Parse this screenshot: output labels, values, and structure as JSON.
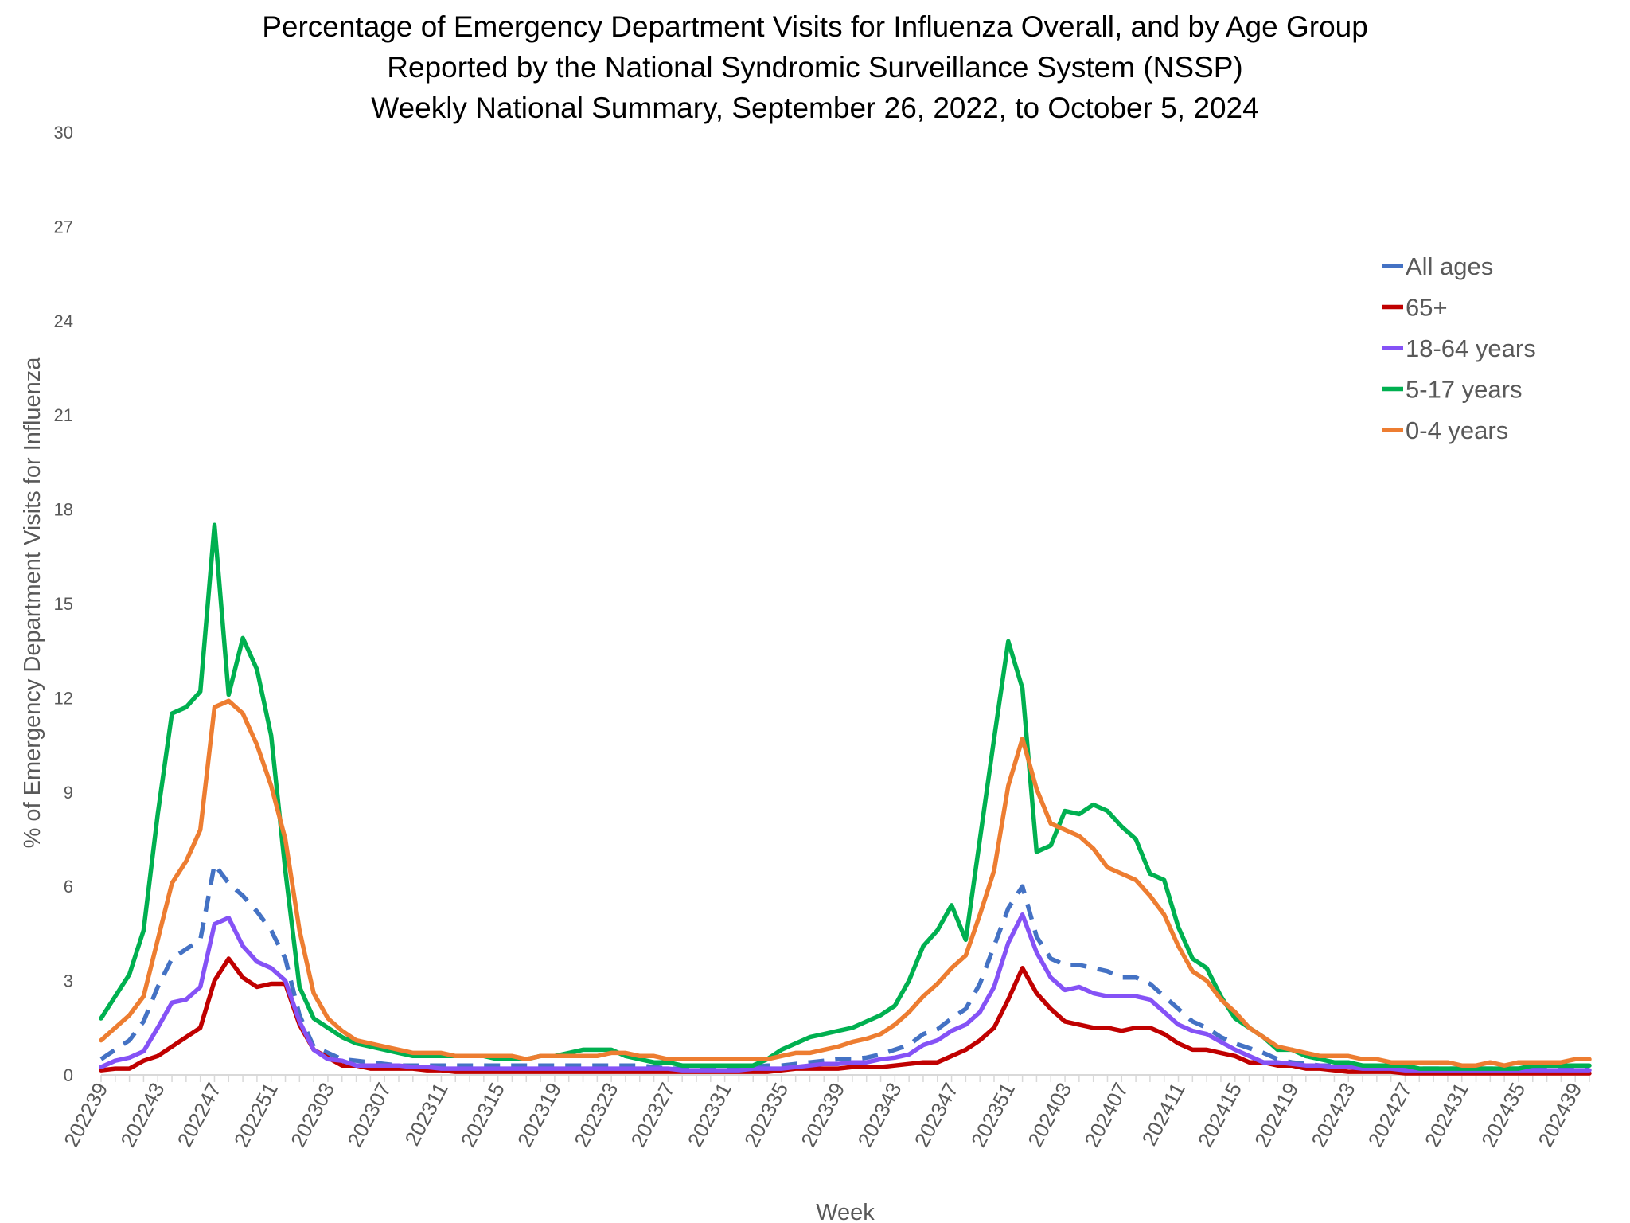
{
  "chart_data": {
    "type": "line",
    "title": [
      "Percentage of Emergency Department Visits for Influenza Overall, and by Age Group",
      "Reported by the National Syndromic Surveillance System (NSSP)",
      "Weekly National Summary, September 26, 2022, to October 5, 2024"
    ],
    "xlabel": "Week",
    "ylabel": "% of Emergency Department Visits for Influenza",
    "ylim": [
      0,
      30
    ],
    "yticks": [
      0,
      3,
      6,
      9,
      12,
      15,
      18,
      21,
      24,
      27,
      30
    ],
    "grid": false,
    "legend_position": "right",
    "xtick_labels": [
      "202239",
      "202243",
      "202247",
      "202251",
      "202303",
      "202307",
      "202311",
      "202315",
      "202319",
      "202323",
      "202327",
      "202331",
      "202335",
      "202339",
      "202343",
      "202347",
      "202351",
      "202403",
      "202407",
      "202411",
      "202415",
      "202419",
      "202423",
      "202427",
      "202431",
      "202435",
      "202439"
    ],
    "x": [
      "202239",
      "202240",
      "202241",
      "202242",
      "202243",
      "202244",
      "202245",
      "202246",
      "202247",
      "202248",
      "202249",
      "202250",
      "202251",
      "202252",
      "202301",
      "202302",
      "202303",
      "202304",
      "202305",
      "202306",
      "202307",
      "202308",
      "202309",
      "202310",
      "202311",
      "202312",
      "202313",
      "202314",
      "202315",
      "202316",
      "202317",
      "202318",
      "202319",
      "202320",
      "202321",
      "202322",
      "202323",
      "202324",
      "202325",
      "202326",
      "202327",
      "202328",
      "202329",
      "202330",
      "202331",
      "202332",
      "202333",
      "202334",
      "202335",
      "202336",
      "202337",
      "202338",
      "202339",
      "202340",
      "202341",
      "202342",
      "202343",
      "202344",
      "202345",
      "202346",
      "202347",
      "202348",
      "202349",
      "202350",
      "202351",
      "202352",
      "202401",
      "202402",
      "202403",
      "202404",
      "202405",
      "202406",
      "202407",
      "202408",
      "202409",
      "202410",
      "202411",
      "202412",
      "202413",
      "202414",
      "202415",
      "202416",
      "202417",
      "202418",
      "202419",
      "202420",
      "202421",
      "202422",
      "202423",
      "202424",
      "202425",
      "202426",
      "202427",
      "202428",
      "202429",
      "202430",
      "202431",
      "202432",
      "202433",
      "202434",
      "202435",
      "202436",
      "202437",
      "202438",
      "202439",
      "202440"
    ],
    "series": [
      {
        "name": "All ages",
        "color": "#4472C4",
        "dashed": true,
        "values": [
          0.5,
          0.8,
          1.1,
          1.7,
          2.8,
          3.7,
          4.0,
          4.3,
          6.7,
          6.1,
          5.7,
          5.2,
          4.6,
          3.7,
          1.9,
          0.9,
          0.7,
          0.5,
          0.45,
          0.4,
          0.35,
          0.3,
          0.3,
          0.3,
          0.3,
          0.3,
          0.3,
          0.3,
          0.3,
          0.3,
          0.3,
          0.3,
          0.3,
          0.3,
          0.3,
          0.3,
          0.3,
          0.3,
          0.3,
          0.25,
          0.2,
          0.2,
          0.2,
          0.2,
          0.2,
          0.2,
          0.25,
          0.3,
          0.3,
          0.35,
          0.4,
          0.45,
          0.5,
          0.5,
          0.55,
          0.65,
          0.8,
          0.95,
          1.3,
          1.45,
          1.8,
          2.1,
          2.9,
          4.1,
          5.3,
          6.0,
          4.4,
          3.7,
          3.5,
          3.5,
          3.4,
          3.3,
          3.1,
          3.1,
          2.9,
          2.5,
          2.1,
          1.7,
          1.5,
          1.2,
          1.0,
          0.85,
          0.7,
          0.5,
          0.4,
          0.35,
          0.3,
          0.3,
          0.3,
          0.25,
          0.2,
          0.2,
          0.2,
          0.2,
          0.2,
          0.2,
          0.2,
          0.2,
          0.2,
          0.2,
          0.2,
          0.2,
          0.2,
          0.2,
          0.2,
          0.2
        ]
      },
      {
        "name": "65+",
        "color": "#C00000",
        "dashed": false,
        "values": [
          0.15,
          0.2,
          0.2,
          0.45,
          0.6,
          0.9,
          1.2,
          1.5,
          3.0,
          3.7,
          3.1,
          2.8,
          2.9,
          2.9,
          1.6,
          0.8,
          0.55,
          0.3,
          0.3,
          0.2,
          0.2,
          0.2,
          0.2,
          0.15,
          0.15,
          0.1,
          0.1,
          0.1,
          0.1,
          0.1,
          0.1,
          0.1,
          0.1,
          0.1,
          0.1,
          0.1,
          0.1,
          0.1,
          0.1,
          0.1,
          0.1,
          0.1,
          0.1,
          0.1,
          0.1,
          0.1,
          0.1,
          0.1,
          0.15,
          0.2,
          0.2,
          0.2,
          0.2,
          0.25,
          0.25,
          0.25,
          0.3,
          0.35,
          0.4,
          0.4,
          0.6,
          0.8,
          1.1,
          1.5,
          2.4,
          3.4,
          2.6,
          2.1,
          1.7,
          1.6,
          1.5,
          1.5,
          1.4,
          1.5,
          1.5,
          1.3,
          1.0,
          0.8,
          0.8,
          0.7,
          0.6,
          0.4,
          0.4,
          0.3,
          0.3,
          0.2,
          0.2,
          0.15,
          0.1,
          0.1,
          0.1,
          0.1,
          0.05,
          0.05,
          0.05,
          0.05,
          0.05,
          0.05,
          0.05,
          0.05,
          0.05,
          0.05,
          0.05,
          0.05,
          0.05,
          0.05
        ]
      },
      {
        "name": "18-64 years",
        "color": "#8552F6",
        "dashed": false,
        "values": [
          0.25,
          0.45,
          0.55,
          0.75,
          1.5,
          2.3,
          2.4,
          2.8,
          4.8,
          5.0,
          4.1,
          3.6,
          3.4,
          3.0,
          1.7,
          0.8,
          0.5,
          0.45,
          0.3,
          0.3,
          0.3,
          0.3,
          0.25,
          0.25,
          0.2,
          0.2,
          0.2,
          0.2,
          0.2,
          0.2,
          0.2,
          0.2,
          0.2,
          0.2,
          0.2,
          0.2,
          0.2,
          0.2,
          0.2,
          0.2,
          0.2,
          0.15,
          0.15,
          0.15,
          0.15,
          0.15,
          0.2,
          0.2,
          0.2,
          0.25,
          0.3,
          0.35,
          0.35,
          0.4,
          0.4,
          0.5,
          0.55,
          0.65,
          0.95,
          1.1,
          1.4,
          1.6,
          2.0,
          2.8,
          4.2,
          5.1,
          3.9,
          3.1,
          2.7,
          2.8,
          2.6,
          2.5,
          2.5,
          2.5,
          2.4,
          2.0,
          1.6,
          1.4,
          1.3,
          1.05,
          0.8,
          0.6,
          0.4,
          0.4,
          0.35,
          0.3,
          0.3,
          0.25,
          0.25,
          0.2,
          0.2,
          0.2,
          0.15,
          0.15,
          0.15,
          0.15,
          0.15,
          0.15,
          0.15,
          0.15,
          0.15,
          0.15,
          0.15,
          0.15,
          0.15,
          0.15
        ]
      },
      {
        "name": "5-17 years",
        "color": "#00B050",
        "dashed": false,
        "values": [
          1.8,
          2.5,
          3.2,
          4.6,
          8.3,
          11.5,
          11.7,
          12.2,
          17.5,
          12.1,
          13.9,
          12.9,
          10.8,
          6.5,
          2.8,
          1.8,
          1.5,
          1.2,
          1.0,
          0.9,
          0.8,
          0.7,
          0.6,
          0.6,
          0.6,
          0.6,
          0.6,
          0.6,
          0.5,
          0.5,
          0.5,
          0.6,
          0.6,
          0.7,
          0.8,
          0.8,
          0.8,
          0.6,
          0.5,
          0.4,
          0.4,
          0.3,
          0.3,
          0.3,
          0.3,
          0.3,
          0.3,
          0.5,
          0.8,
          1.0,
          1.2,
          1.3,
          1.4,
          1.5,
          1.7,
          1.9,
          2.2,
          3.0,
          4.1,
          4.6,
          5.4,
          4.3,
          7.5,
          10.7,
          13.8,
          12.3,
          7.1,
          7.3,
          8.4,
          8.3,
          8.6,
          8.4,
          7.9,
          7.5,
          6.4,
          6.2,
          4.7,
          3.7,
          3.4,
          2.5,
          1.8,
          1.5,
          1.2,
          0.8,
          0.8,
          0.6,
          0.5,
          0.4,
          0.4,
          0.3,
          0.3,
          0.3,
          0.3,
          0.2,
          0.2,
          0.2,
          0.2,
          0.2,
          0.2,
          0.2,
          0.2,
          0.3,
          0.3,
          0.3,
          0.3,
          0.3
        ]
      },
      {
        "name": "0-4 years",
        "color": "#ED7D31",
        "dashed": false,
        "values": [
          1.1,
          1.5,
          1.9,
          2.5,
          4.3,
          6.1,
          6.8,
          7.8,
          11.7,
          11.9,
          11.5,
          10.5,
          9.2,
          7.5,
          4.6,
          2.6,
          1.8,
          1.4,
          1.1,
          1.0,
          0.9,
          0.8,
          0.7,
          0.7,
          0.7,
          0.6,
          0.6,
          0.6,
          0.6,
          0.6,
          0.5,
          0.6,
          0.6,
          0.6,
          0.6,
          0.6,
          0.7,
          0.7,
          0.6,
          0.6,
          0.5,
          0.5,
          0.5,
          0.5,
          0.5,
          0.5,
          0.5,
          0.5,
          0.6,
          0.7,
          0.7,
          0.8,
          0.9,
          1.05,
          1.15,
          1.3,
          1.6,
          2.0,
          2.5,
          2.9,
          3.4,
          3.8,
          5.1,
          6.5,
          9.2,
          10.7,
          9.1,
          8.0,
          7.8,
          7.6,
          7.2,
          6.6,
          6.4,
          6.2,
          5.7,
          5.1,
          4.1,
          3.3,
          3.0,
          2.4,
          2.0,
          1.5,
          1.2,
          0.9,
          0.8,
          0.7,
          0.6,
          0.6,
          0.6,
          0.5,
          0.5,
          0.4,
          0.4,
          0.4,
          0.4,
          0.4,
          0.3,
          0.3,
          0.4,
          0.3,
          0.4,
          0.4,
          0.4,
          0.4,
          0.5,
          0.5
        ]
      }
    ]
  }
}
